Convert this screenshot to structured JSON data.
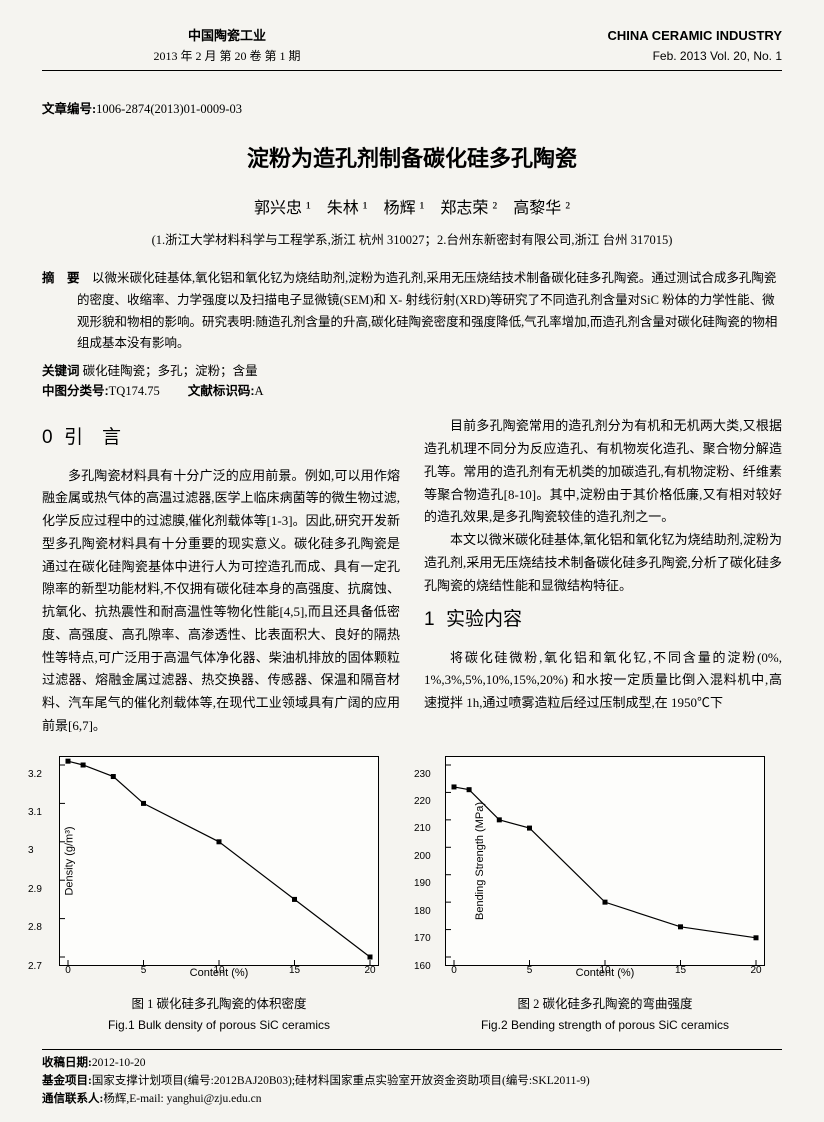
{
  "header": {
    "cn_title": "中国陶瓷工业",
    "cn_issue": "2013 年 2 月 第 20 卷 第 1 期",
    "en_title": "CHINA CERAMIC INDUSTRY",
    "en_issue": "Feb. 2013  Vol. 20, No. 1"
  },
  "article_number_label": "文章编号:",
  "article_number": "1006-2874(2013)01-0009-03",
  "title": "淀粉为造孔剂制备碳化硅多孔陶瓷",
  "authors": "郭兴忠 ¹　朱林 ¹　杨辉 ¹　郑志荣 ²　高黎华 ²",
  "affiliations": "(1.浙江大学材料科学与工程学系,浙江 杭州 310027；2.台州东新密封有限公司,浙江 台州 317015)",
  "abstract_label": "摘　要",
  "abstract_body": "以微米碳化硅基体,氧化铝和氧化钇为烧结助剂,淀粉为造孔剂,采用无压烧结技术制备碳化硅多孔陶瓷。通过测试合成多孔陶瓷的密度、收缩率、力学强度以及扫描电子显微镜(SEM)和 X- 射线衍射(XRD)等研究了不同造孔剂含量对SiC 粉体的力学性能、微观形貌和物相的影响。研究表明:随造孔剂含量的升高,碳化硅陶瓷密度和强度降低,气孔率增加,而造孔剂含量对碳化硅陶瓷的物相组成基本没有影响。",
  "keywords_label": "关键词",
  "keywords": "碳化硅陶瓷；多孔；淀粉；含量",
  "clc_label": "中图分类号:",
  "clc": "TQ174.75",
  "doc_code_label": "文献标识码:",
  "doc_code": "A",
  "sec0_num": "0",
  "sec0_title": "引　言",
  "col1_p1": "多孔陶瓷材料具有十分广泛的应用前景。例如,可以用作熔融金属或热气体的高温过滤器,医学上临床病菌等的微生物过滤,化学反应过程中的过滤膜,催化剂载体等[1-3]。因此,研究开发新型多孔陶瓷材料具有十分重要的现实意义。碳化硅多孔陶瓷是通过在碳化硅陶瓷基体中进行人为可控造孔而成、具有一定孔隙率的新型功能材料,不仅拥有碳化硅本身的高强度、抗腐蚀、抗氧化、抗热震性和耐高温性等物化性能[4,5],而且还具备低密度、高强度、高孔隙率、高渗透性、比表面积大、良好的隔热性等特点,可广泛用于高温气体净化器、柴油机排放的固体颗粒过滤器、熔融金属过滤器、热交换器、传感器、保温和隔音材料、汽车尾气的催化剂载体等,在现代工业领域具有广阔的应用前景[6,7]。",
  "col2_p1": "目前多孔陶瓷常用的造孔剂分为有机和无机两大类,又根据造孔机理不同分为反应造孔、有机物炭化造孔、聚合物分解造孔等。常用的造孔剂有无机类的加碳造孔,有机物淀粉、纤维素等聚合物造孔[8-10]。其中,淀粉由于其价格低廉,又有相对较好的造孔效果,是多孔陶瓷较佳的造孔剂之一。",
  "col2_p2": "本文以微米碳化硅基体,氧化铝和氧化钇为烧结助剂,淀粉为造孔剂,采用无压烧结技术制备碳化硅多孔陶瓷,分析了碳化硅多孔陶瓷的烧结性能和显微结构特征。",
  "sec1_num": "1",
  "sec1_title": "实验内容",
  "col2_p3": "将碳化硅微粉,氧化铝和氧化钇,不同含量的淀粉(0%, 1%,3%,5%,10%,15%,20%) 和水按一定质量比倒入混料机中,高速搅拌 1h,通过喷雾造粒后经过压制成型,在 1950℃下",
  "fig1": {
    "type": "line",
    "x": [
      0,
      1,
      3,
      5,
      10,
      15,
      20
    ],
    "y": [
      3.21,
      3.2,
      3.17,
      3.1,
      3.0,
      2.85,
      2.7
    ],
    "xlim": [
      0,
      20
    ],
    "ylim": [
      2.7,
      3.2
    ],
    "xticks": [
      0,
      5,
      10,
      15,
      20
    ],
    "yticks": [
      2.7,
      2.8,
      2.9,
      3.0,
      3.1,
      3.2
    ],
    "xlabel": "Content (%)",
    "ylabel": "Density (g/m³)",
    "marker": "square",
    "marker_size": 5,
    "line_color": "#000000",
    "line_width": 1.2,
    "background_color": "#fdfdfb",
    "caption_cn": "图 1 碳化硅多孔陶瓷的体积密度",
    "caption_en": "Fig.1 Bulk density of porous SiC ceramics"
  },
  "fig2": {
    "type": "line",
    "x": [
      0,
      1,
      3,
      5,
      10,
      15,
      20
    ],
    "y": [
      222,
      221,
      210,
      207,
      180,
      171,
      167
    ],
    "xlim": [
      0,
      20
    ],
    "ylim": [
      160,
      230
    ],
    "xticks": [
      0,
      5,
      10,
      15,
      20
    ],
    "yticks": [
      160,
      170,
      180,
      190,
      200,
      210,
      220,
      230
    ],
    "xlabel": "Content (%)",
    "ylabel": "Bending Strength (MPa)",
    "marker": "square",
    "marker_size": 5,
    "line_color": "#000000",
    "line_width": 1.2,
    "background_color": "#fdfdfb",
    "caption_cn": "图 2 碳化硅多孔陶瓷的弯曲强度",
    "caption_en": "Fig.2 Bending strength of porous SiC ceramics"
  },
  "footer": {
    "recv_label": "收稿日期:",
    "recv": "2012-10-20",
    "fund_label": "基金项目:",
    "fund": "国家支撑计划项目(编号:2012BAJ20B03);硅材料国家重点实验室开放资金资助项目(编号:SKL2011-9)",
    "corr_label": "通信联系人:",
    "corr": "杨辉,E-mail: yanghui@zju.edu.cn"
  }
}
